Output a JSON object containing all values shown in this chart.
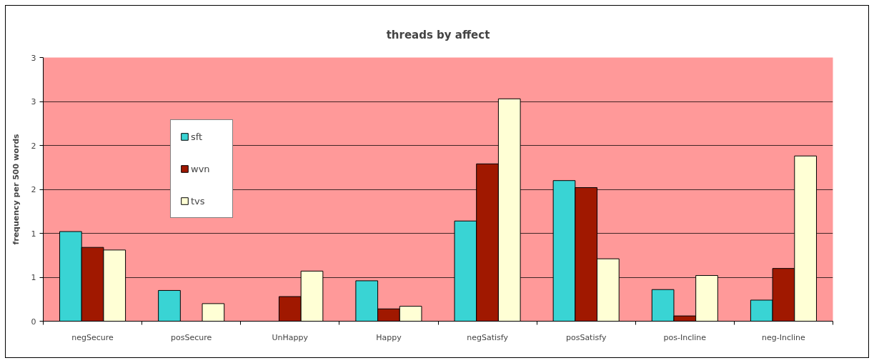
{
  "chart_data": {
    "type": "bar",
    "title": "threads by affect",
    "ylabel": "frequency per 500 words",
    "categories": [
      "negSecure",
      "posSecure",
      "UnHappy",
      "Happy",
      "negSatisfy",
      "posSatisfy",
      "pos-Incline",
      "neg-Incline"
    ],
    "series": [
      {
        "name": "sft",
        "color": "#39d4d4",
        "values": [
          1.02,
          0.35,
          null,
          0.46,
          1.14,
          1.6,
          0.36,
          0.24
        ]
      },
      {
        "name": "wvn",
        "color": "#a01800",
        "values": [
          0.84,
          null,
          0.28,
          0.14,
          1.79,
          1.52,
          0.06,
          0.6
        ]
      },
      {
        "name": "tvs",
        "color": "#ffffd5",
        "values": [
          0.81,
          0.2,
          0.57,
          0.17,
          2.53,
          0.71,
          0.52,
          1.88
        ]
      }
    ],
    "ylim": [
      0,
      3
    ],
    "yticks": [
      0,
      {
        "value": 0.5,
        "label": "1"
      },
      1,
      {
        "value": 1.5,
        "label": "2"
      },
      2,
      {
        "value": 2.5,
        "label": "3"
      },
      3
    ],
    "grid": "y",
    "legend": "top left"
  }
}
